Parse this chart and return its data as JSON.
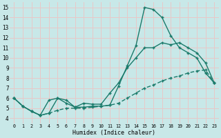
{
  "xlabel": "Humidex (Indice chaleur)",
  "background_color": "#c8e8e8",
  "grid_color": "#e8c8c8",
  "line_color": "#1a7a6a",
  "xlim": [
    -0.5,
    23.5
  ],
  "ylim": [
    3.5,
    15.5
  ],
  "xticks": [
    0,
    1,
    2,
    3,
    4,
    5,
    6,
    7,
    8,
    9,
    10,
    11,
    12,
    13,
    14,
    15,
    16,
    17,
    18,
    19,
    20,
    21,
    22,
    23
  ],
  "yticks": [
    4,
    5,
    6,
    7,
    8,
    9,
    10,
    11,
    12,
    13,
    14,
    15
  ],
  "series1_x": [
    0,
    1,
    2,
    3,
    4,
    5,
    6,
    7,
    8,
    9,
    10,
    11,
    12,
    13,
    14,
    15,
    16,
    17,
    18,
    19,
    20,
    21,
    22,
    23
  ],
  "series1_y": [
    6.0,
    5.2,
    4.7,
    4.3,
    4.5,
    6.0,
    5.8,
    5.1,
    5.1,
    5.2,
    5.2,
    5.3,
    7.2,
    9.2,
    11.2,
    15.0,
    14.8,
    14.0,
    12.2,
    11.0,
    10.5,
    10.0,
    8.5,
    7.5
  ],
  "series2_x": [
    0,
    1,
    2,
    3,
    4,
    5,
    6,
    7,
    8,
    9,
    10,
    11,
    12,
    13,
    14,
    15,
    16,
    17,
    18,
    19,
    20,
    21,
    22,
    23
  ],
  "series2_y": [
    6.0,
    5.2,
    4.7,
    4.3,
    5.8,
    6.0,
    5.5,
    5.1,
    5.5,
    5.4,
    5.4,
    6.5,
    7.5,
    9.0,
    10.0,
    11.0,
    11.0,
    11.5,
    11.3,
    11.5,
    11.0,
    10.5,
    9.5,
    7.5
  ],
  "series3_x": [
    0,
    1,
    2,
    3,
    4,
    5,
    6,
    7,
    8,
    9,
    10,
    11,
    12,
    13,
    14,
    15,
    16,
    17,
    18,
    19,
    20,
    21,
    22,
    23
  ],
  "series3_y": [
    6.0,
    5.2,
    4.7,
    4.3,
    4.5,
    4.8,
    5.0,
    5.0,
    5.0,
    5.1,
    5.2,
    5.3,
    5.5,
    6.0,
    6.5,
    7.0,
    7.3,
    7.7,
    8.0,
    8.2,
    8.5,
    8.7,
    8.8,
    7.5
  ]
}
